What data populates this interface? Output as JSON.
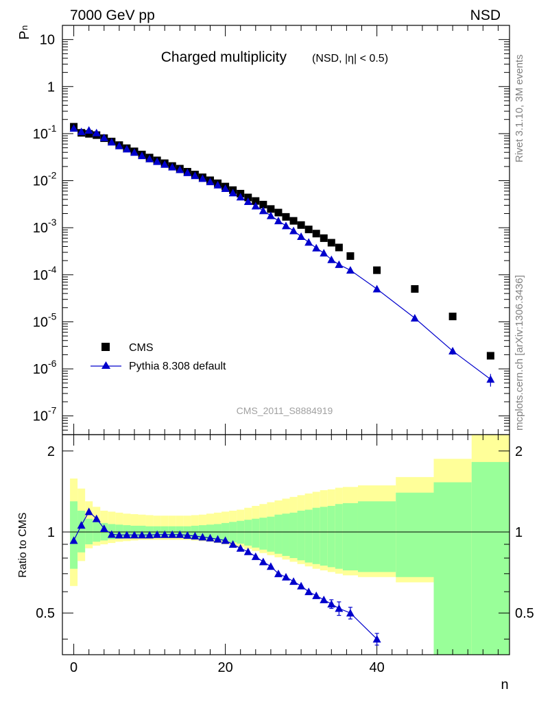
{
  "header": {
    "left_title": "7000 GeV pp",
    "right_title": "NSD"
  },
  "side_labels": {
    "rivet": "Rivet 3.1.10,  3M events",
    "source": "mcplots.cern.ch [arXiv:1306.3436]"
  },
  "chart_data": [
    {
      "type": "scatter",
      "title": "Charged multiplicity",
      "subtitle": "(NSD, |η| < 0.5)",
      "ylabel": "P",
      "ylabel_subscript": "n",
      "watermark": "CMS_2011_S8884919",
      "yscale": "log",
      "ylim": [
        4e-08,
        20
      ],
      "xlim": [
        -1.5,
        57.5
      ],
      "y_ticks": [
        "10^-7",
        "10^-6",
        "10^-5",
        "10^-4",
        "10^-3",
        "10^-2",
        "10^-1",
        "1",
        "10"
      ],
      "legend_position": "bottom-left",
      "series": [
        {
          "name": "CMS",
          "marker": "square",
          "color": "#000000",
          "x": [
            0,
            1,
            2,
            3,
            4,
            5,
            6,
            7,
            8,
            9,
            10,
            11,
            12,
            13,
            14,
            15,
            16,
            17,
            18,
            19,
            20,
            21,
            22,
            23,
            24,
            25,
            26,
            27,
            28,
            29,
            30,
            31,
            32,
            33,
            34,
            35,
            36.5,
            40,
            45,
            50,
            55
          ],
          "y": [
            0.14,
            0.104,
            0.099,
            0.093,
            0.08,
            0.068,
            0.057,
            0.049,
            0.042,
            0.036,
            0.031,
            0.027,
            0.0235,
            0.0205,
            0.018,
            0.0155,
            0.0135,
            0.0118,
            0.0102,
            0.0088,
            0.0075,
            0.0063,
            0.0053,
            0.0044,
            0.0037,
            0.0031,
            0.0025,
            0.0021,
            0.0017,
            0.0014,
            0.00114,
            0.00092,
            0.00075,
            0.0006,
            0.00048,
            0.00038,
            0.00025,
            0.000125,
            5e-05,
            1.3e-05,
            1.9e-06
          ]
        },
        {
          "name": "Pythia 8.308 default",
          "marker": "triangle",
          "color": "#0000cc",
          "x": [
            0,
            1,
            2,
            3,
            4,
            5,
            6,
            7,
            8,
            9,
            10,
            11,
            12,
            13,
            14,
            15,
            16,
            17,
            18,
            19,
            20,
            21,
            22,
            23,
            24,
            25,
            26,
            27,
            28,
            29,
            30,
            31,
            32,
            33,
            34,
            35,
            36.5,
            40,
            45,
            50,
            55
          ],
          "y": [
            0.13,
            0.11,
            0.118,
            0.104,
            0.082,
            0.066,
            0.055,
            0.047,
            0.04,
            0.034,
            0.029,
            0.0255,
            0.0222,
            0.0195,
            0.0171,
            0.0148,
            0.0128,
            0.0111,
            0.0095,
            0.0081,
            0.0068,
            0.0055,
            0.0045,
            0.0036,
            0.0029,
            0.0023,
            0.0018,
            0.0014,
            0.0011,
            0.00086,
            0.00065,
            0.00049,
            0.00037,
            0.00029,
            0.00021,
            0.000165,
            0.000125,
            5e-05,
            1.2e-05,
            2.4e-06,
            6e-07
          ],
          "y_err": [
            0,
            0,
            0,
            0,
            0,
            0,
            0,
            0,
            0,
            0,
            0,
            0,
            0,
            0,
            0,
            0,
            0,
            0,
            0,
            0,
            0,
            0,
            0,
            0,
            0,
            0,
            0,
            0,
            0,
            0,
            0,
            0,
            0,
            0,
            0,
            0,
            0,
            0,
            0,
            4e-07,
            1.8e-07
          ]
        }
      ]
    },
    {
      "type": "line",
      "ylabel": "Ratio to CMS",
      "xlabel": "n",
      "ylim": [
        0.35,
        2.3
      ],
      "xlim": [
        -1.5,
        57.5
      ],
      "x_ticks": [
        0,
        20,
        40
      ],
      "y_ticks": [
        0.5,
        1,
        2
      ],
      "reference_line": 1,
      "bands": {
        "edges": [
          -0.5,
          0.5,
          1.5,
          2.5,
          3.5,
          4.5,
          5.5,
          6.5,
          7.5,
          8.5,
          9.5,
          10.5,
          11.5,
          12.5,
          13.5,
          14.5,
          15.5,
          16.5,
          17.5,
          18.5,
          19.5,
          20.5,
          21.5,
          22.5,
          23.5,
          24.5,
          25.5,
          26.5,
          27.5,
          28.5,
          29.5,
          30.5,
          31.5,
          32.5,
          33.5,
          34.5,
          35.5,
          37.5,
          42.5,
          47.5,
          52.5,
          57.5
        ],
        "outer_color": "#ffff99",
        "inner_color": "#99ff99",
        "outer_lo": [
          0.63,
          0.78,
          0.87,
          0.89,
          0.9,
          0.91,
          0.92,
          0.925,
          0.93,
          0.935,
          0.935,
          0.935,
          0.935,
          0.935,
          0.935,
          0.935,
          0.93,
          0.925,
          0.92,
          0.91,
          0.9,
          0.89,
          0.88,
          0.865,
          0.85,
          0.835,
          0.82,
          0.805,
          0.79,
          0.775,
          0.76,
          0.745,
          0.73,
          0.72,
          0.71,
          0.7,
          0.69,
          0.68,
          0.65,
          0.3,
          0.3
        ],
        "outer_hi": [
          1.58,
          1.45,
          1.3,
          1.24,
          1.2,
          1.19,
          1.18,
          1.17,
          1.165,
          1.16,
          1.155,
          1.15,
          1.15,
          1.15,
          1.15,
          1.15,
          1.155,
          1.16,
          1.17,
          1.18,
          1.19,
          1.2,
          1.21,
          1.23,
          1.25,
          1.27,
          1.29,
          1.31,
          1.33,
          1.35,
          1.37,
          1.39,
          1.41,
          1.43,
          1.44,
          1.46,
          1.47,
          1.49,
          1.6,
          1.87,
          2.4
        ],
        "inner_lo": [
          0.73,
          0.84,
          0.9,
          0.92,
          0.93,
          0.94,
          0.945,
          0.95,
          0.955,
          0.955,
          0.955,
          0.955,
          0.955,
          0.955,
          0.955,
          0.955,
          0.95,
          0.945,
          0.94,
          0.935,
          0.925,
          0.915,
          0.905,
          0.89,
          0.875,
          0.86,
          0.845,
          0.83,
          0.815,
          0.8,
          0.785,
          0.77,
          0.76,
          0.75,
          0.74,
          0.73,
          0.72,
          0.71,
          0.68,
          0.3,
          0.3
        ],
        "inner_hi": [
          1.3,
          1.2,
          1.12,
          1.1,
          1.08,
          1.07,
          1.065,
          1.06,
          1.055,
          1.055,
          1.05,
          1.05,
          1.05,
          1.05,
          1.05,
          1.05,
          1.055,
          1.06,
          1.065,
          1.07,
          1.08,
          1.09,
          1.1,
          1.11,
          1.12,
          1.13,
          1.14,
          1.16,
          1.17,
          1.18,
          1.2,
          1.21,
          1.23,
          1.24,
          1.25,
          1.27,
          1.28,
          1.3,
          1.4,
          1.53,
          1.82
        ]
      },
      "series": [
        {
          "name": "Pythia 8.308 default",
          "color": "#0000cc",
          "x": [
            0,
            1,
            2,
            3,
            4,
            5,
            6,
            7,
            8,
            9,
            10,
            11,
            12,
            13,
            14,
            15,
            16,
            17,
            18,
            19,
            20,
            21,
            22,
            23,
            24,
            25,
            26,
            27,
            28,
            29,
            30,
            31,
            32,
            33,
            34,
            35,
            36.5,
            40
          ],
          "y": [
            0.93,
            1.06,
            1.19,
            1.12,
            1.03,
            0.98,
            0.975,
            0.975,
            0.975,
            0.975,
            0.975,
            0.978,
            0.978,
            0.978,
            0.978,
            0.972,
            0.966,
            0.958,
            0.95,
            0.94,
            0.93,
            0.9,
            0.87,
            0.845,
            0.81,
            0.775,
            0.745,
            0.7,
            0.68,
            0.655,
            0.63,
            0.6,
            0.58,
            0.56,
            0.54,
            0.52,
            0.5,
            0.4
          ],
          "y_err": [
            0,
            0,
            0,
            0,
            0,
            0,
            0,
            0,
            0,
            0,
            0,
            0,
            0,
            0,
            0,
            0,
            0,
            0,
            0,
            0,
            0,
            0,
            0,
            0,
            0,
            0,
            0,
            0,
            0,
            0,
            0,
            0,
            0,
            0,
            0.02,
            0.03,
            0.025,
            0.02
          ]
        }
      ]
    }
  ]
}
